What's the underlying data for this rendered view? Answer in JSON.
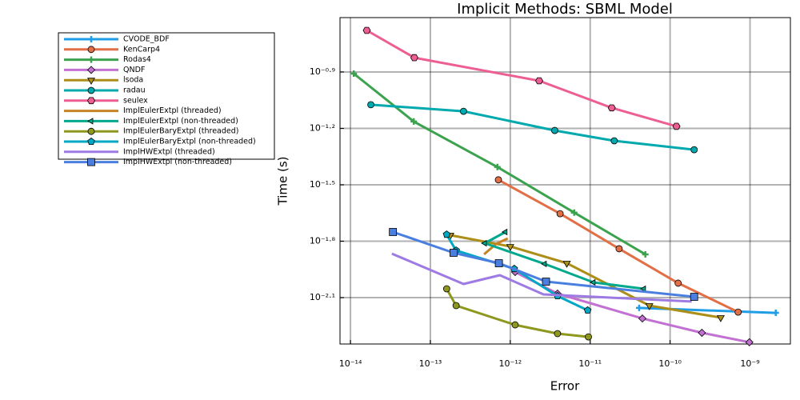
{
  "chart_data": {
    "type": "line",
    "title": "Implicit Methods: SBML Model",
    "xlabel": "Error",
    "ylabel": "Time (s)",
    "xscale": "log",
    "yscale": "log",
    "grid": true,
    "legend": "outside-left",
    "xlim": [
      7.4e-15,
      3.2e-09
    ],
    "ylim": [
      0.0045,
      0.245
    ],
    "xticks": [
      {
        "value": 1e-14,
        "label": "10⁻¹⁴"
      },
      {
        "value": 1e-13,
        "label": "10⁻¹³"
      },
      {
        "value": 1e-12,
        "label": "10⁻¹²"
      },
      {
        "value": 1e-11,
        "label": "10⁻¹¹"
      },
      {
        "value": 1e-10,
        "label": "10⁻¹⁰"
      },
      {
        "value": 1e-09,
        "label": "10⁻⁹"
      }
    ],
    "yticks": [
      {
        "value": 0.12589,
        "label": "10⁻⁰·⁹"
      },
      {
        "value": 0.0631,
        "label": "10⁻¹·²"
      },
      {
        "value": 0.03162,
        "label": "10⁻¹·⁵"
      },
      {
        "value": 0.01585,
        "label": "10⁻¹·⁸"
      },
      {
        "value": 0.00794,
        "label": "10⁻²·¹"
      }
    ],
    "series": [
      {
        "name": "CVODE_BDF",
        "color": "#1f9de6",
        "marker": "plus",
        "x": [
          4.1e-11,
          2.1e-09
        ],
        "values": [
          0.007,
          0.00659
        ]
      },
      {
        "name": "KenCarp4",
        "color": "#e26f46",
        "marker": "circle",
        "x": [
          7.1e-13,
          4.2e-12,
          2.3e-11,
          1.26e-10,
          7.1e-10
        ],
        "values": [
          0.0336,
          0.0222,
          0.01445,
          0.00948,
          0.00665
        ]
      },
      {
        "name": "Rodas4",
        "color": "#3ba24e",
        "marker": "plus",
        "x": [
          1.1e-14,
          6.2e-14,
          6.9e-13,
          6.3e-12,
          4.9e-11
        ],
        "values": [
          0.1234,
          0.0686,
          0.0393,
          0.0225,
          0.01349
        ]
      },
      {
        "name": "QNDF",
        "color": "#c271d2",
        "marker": "diamond",
        "x": [
          1.15e-12,
          3.9e-12,
          4.5e-11,
          2.5e-10,
          9.8e-10
        ],
        "values": [
          0.01087,
          0.00834,
          0.00615,
          0.00516,
          0.0046
        ]
      },
      {
        "name": "lsoda",
        "color": "#ac8e18",
        "marker": "dtriangle",
        "x": [
          1.78e-13,
          1e-12,
          5.1e-12,
          5.5e-11,
          4.3e-10
        ],
        "values": [
          0.01706,
          0.01486,
          0.0121,
          0.0072,
          0.00622
        ]
      },
      {
        "name": "radau",
        "color": "#00a9ad",
        "marker": "circle",
        "x": [
          1.8e-14,
          2.6e-13,
          3.6e-12,
          2e-11,
          2e-10
        ],
        "values": [
          0.0843,
          0.0778,
          0.0615,
          0.0542,
          0.0486
        ]
      },
      {
        "name": "seulex",
        "color": "#ed5e93",
        "marker": "hexagon",
        "x": [
          1.6e-14,
          6.3e-14,
          2.3e-12,
          1.86e-11,
          1.2e-10
        ],
        "values": [
          0.2094,
          0.15,
          0.113,
          0.0811,
          0.0647
        ]
      },
      {
        "name": "ImplEulerExtpl (threaded)",
        "color": "#c68225",
        "marker": "none",
        "x": [
          4.7e-13,
          6.6e-13,
          9.3e-13
        ],
        "values": [
          0.01349,
          0.0153,
          0.0164
        ]
      },
      {
        "name": "ImplEulerExtpl (non-threaded)",
        "color": "#00a98d",
        "marker": "ltriangle",
        "x": [
          8.7e-13,
          4.8e-13,
          2.7e-12,
          1.1e-11,
          4.7e-11
        ],
        "values": [
          0.01774,
          0.01546,
          0.012,
          0.00957,
          0.00885
        ]
      },
      {
        "name": "ImplEulerBaryExtpl (threaded)",
        "color": "#8e971e",
        "marker": "circle",
        "x": [
          1.6e-13,
          2.1e-13,
          1.15e-12,
          3.9e-12,
          9.5e-12
        ],
        "values": [
          0.00885,
          0.0072,
          0.00569,
          0.00511,
          0.00491
        ]
      },
      {
        "name": "ImplEulerBaryExtpl (non-threaded)",
        "color": "#00a8c6",
        "marker": "pentagon",
        "x": [
          1.6e-13,
          2.1e-13,
          1.12e-12,
          3.9e-12,
          9.3e-12
        ],
        "values": [
          0.0172,
          0.01415,
          0.0113,
          0.0081,
          0.0068
        ]
      },
      {
        "name": "ImplHWExtpl (threaded)",
        "color": "#9e7be3",
        "marker": "none",
        "x": [
          3.3e-14,
          2.6e-13,
          7.4e-13,
          2.6e-12,
          1.86e-10
        ],
        "values": [
          0.0136,
          0.00938,
          0.01045,
          0.00826,
          0.00757
        ]
      },
      {
        "name": "ImplHWExtpl (non-threaded)",
        "color": "#4a7fe0",
        "marker": "square",
        "x": [
          3.4e-14,
          1.95e-13,
          7.2e-13,
          2.8e-12,
          2e-10
        ],
        "values": [
          0.01774,
          0.01375,
          0.0121,
          0.00966,
          0.00802
        ]
      }
    ]
  }
}
